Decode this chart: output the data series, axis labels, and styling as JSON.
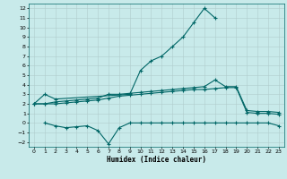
{
  "title": "",
  "xlabel": "Humidex (Indice chaleur)",
  "background_color": "#c8eaea",
  "grid_color": "#b0cccc",
  "line_color": "#006666",
  "xlim": [
    -0.5,
    23.5
  ],
  "ylim": [
    -2.5,
    12.5
  ],
  "xticks": [
    0,
    1,
    2,
    3,
    4,
    5,
    6,
    7,
    8,
    9,
    10,
    11,
    12,
    13,
    14,
    15,
    16,
    17,
    18,
    19,
    20,
    21,
    22,
    23
  ],
  "yticks": [
    -2,
    -1,
    0,
    1,
    2,
    3,
    4,
    5,
    6,
    7,
    8,
    9,
    10,
    11,
    12
  ],
  "line1_x": [
    0,
    1,
    2,
    9,
    10,
    11,
    12,
    13,
    14,
    15,
    16,
    17
  ],
  "line1_y": [
    2.0,
    3.0,
    2.5,
    3.0,
    5.5,
    6.5,
    7.0,
    8.0,
    9.0,
    10.5,
    12.0,
    11.0
  ],
  "line2_x": [
    0,
    1,
    2,
    3,
    4,
    5,
    6,
    7,
    8,
    9,
    10,
    11,
    12,
    13,
    14,
    15,
    16,
    17,
    18,
    19,
    20,
    21,
    22,
    23
  ],
  "line2_y": [
    2.0,
    2.0,
    2.2,
    2.3,
    2.4,
    2.5,
    2.6,
    3.0,
    3.0,
    3.1,
    3.2,
    3.3,
    3.4,
    3.5,
    3.6,
    3.7,
    3.8,
    4.5,
    3.8,
    3.8,
    1.3,
    1.2,
    1.2,
    1.1
  ],
  "line3_x": [
    0,
    1,
    2,
    3,
    4,
    5,
    6,
    7,
    8,
    9,
    10,
    11,
    12,
    13,
    14,
    15,
    16,
    17,
    18,
    19,
    20,
    21,
    22,
    23
  ],
  "line3_y": [
    2.0,
    2.0,
    2.0,
    2.1,
    2.2,
    2.3,
    2.4,
    2.6,
    2.8,
    2.9,
    3.0,
    3.1,
    3.2,
    3.3,
    3.4,
    3.5,
    3.5,
    3.6,
    3.7,
    3.7,
    1.1,
    1.0,
    1.0,
    0.9
  ],
  "line4_x": [
    1,
    2,
    3,
    4,
    5,
    6,
    7,
    8,
    9,
    10,
    11,
    12,
    13,
    14,
    15,
    16,
    17,
    18,
    19,
    20,
    21,
    22,
    23
  ],
  "line4_y": [
    0.0,
    -0.3,
    -0.5,
    -0.4,
    -0.3,
    -0.8,
    -2.2,
    -0.5,
    0.0,
    0.0,
    0.0,
    0.0,
    0.0,
    0.0,
    0.0,
    0.0,
    0.0,
    0.0,
    0.0,
    0.0,
    0.0,
    0.0,
    -0.3
  ]
}
